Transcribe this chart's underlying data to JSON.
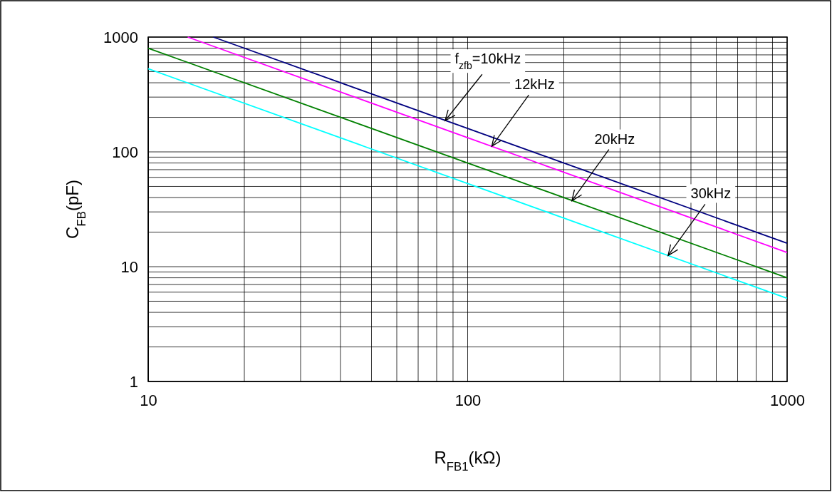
{
  "chart_data": {
    "type": "line",
    "xlabel": "R$_{FB1}$(kΩ)",
    "ylabel": "C$_{FB}$(pF)",
    "log": "xy",
    "grid": true,
    "marker": "none",
    "line_style": "solid",
    "xlim": [
      10,
      1000
    ],
    "ylim": [
      1,
      1000
    ],
    "xticks": [
      10,
      {
        "value": 20,
        "label": null
      },
      {
        "value": 30,
        "label": null
      },
      {
        "value": 40,
        "label": null
      },
      {
        "value": 50,
        "label": null
      },
      {
        "value": 60,
        "label": null
      },
      {
        "value": 70,
        "label": null
      },
      {
        "value": 80,
        "label": null
      },
      {
        "value": 90,
        "label": null
      },
      100,
      {
        "value": 200,
        "label": null
      },
      {
        "value": 300,
        "label": null
      },
      {
        "value": 400,
        "label": null
      },
      {
        "value": 500,
        "label": null
      },
      {
        "value": 600,
        "label": null
      },
      {
        "value": 700,
        "label": null
      },
      {
        "value": 800,
        "label": null
      },
      {
        "value": 900,
        "label": null
      },
      1000
    ],
    "yticks": [
      1,
      {
        "value": 2,
        "label": null
      },
      {
        "value": 3,
        "label": null
      },
      {
        "value": 4,
        "label": null
      },
      {
        "value": 5,
        "label": null
      },
      {
        "value": 6,
        "label": null
      },
      {
        "value": 7,
        "label": null
      },
      {
        "value": 8,
        "label": null
      },
      {
        "value": 9,
        "label": null
      },
      10,
      {
        "value": 20,
        "label": null
      },
      {
        "value": 30,
        "label": null
      },
      {
        "value": 40,
        "label": null
      },
      {
        "value": 50,
        "label": null
      },
      {
        "value": 60,
        "label": null
      },
      {
        "value": 70,
        "label": null
      },
      {
        "value": 80,
        "label": null
      },
      {
        "value": 90,
        "label": null
      },
      100,
      {
        "value": 200,
        "label": null
      },
      {
        "value": 300,
        "label": null
      },
      {
        "value": 400,
        "label": null
      },
      {
        "value": 500,
        "label": null
      },
      {
        "value": 600,
        "label": null
      },
      {
        "value": 700,
        "label": null
      },
      {
        "value": 800,
        "label": null
      },
      {
        "value": 900,
        "label": null
      },
      1000
    ],
    "series": [
      {
        "color": "#000080",
        "x": [
          16,
          100,
          1000
        ],
        "values": [
          1000,
          160,
          16
        ]
      },
      {
        "color": "#ff00ff",
        "x": [
          13.3,
          100,
          1000
        ],
        "values": [
          1000,
          133,
          13.3
        ]
      },
      {
        "color": "#008000",
        "x": [
          10,
          100,
          1000
        ],
        "values": [
          800,
          80,
          8
        ]
      },
      {
        "color": "#00ffff",
        "x": [
          10,
          100,
          1000
        ],
        "values": [
          530,
          53,
          5.3
        ]
      }
    ],
    "annotations": [
      {
        "text": "f$_{zfb}$=10kHz",
        "x": 85,
        "y": 187
      },
      {
        "text": "12kHz",
        "x": 119,
        "y": 112
      },
      {
        "text": "20kHz",
        "x": 212,
        "y": 37.5
      },
      {
        "text": "30kHz",
        "x": 424,
        "y": 12.5
      }
    ]
  }
}
